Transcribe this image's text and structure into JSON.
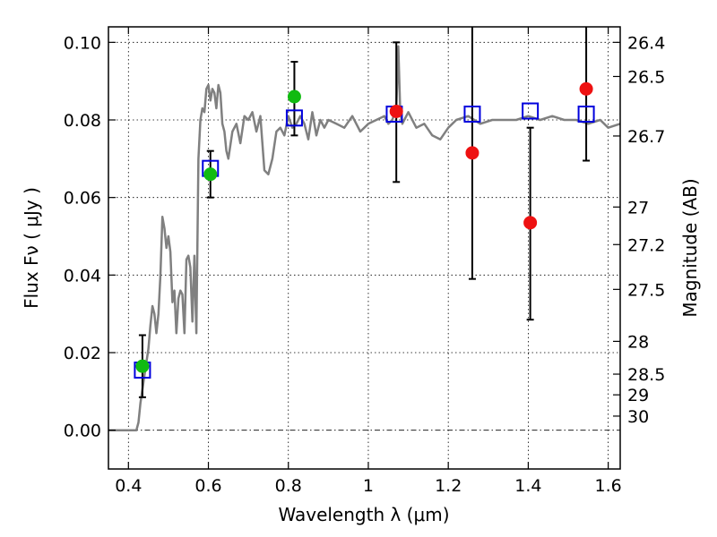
{
  "chart_data": {
    "type": "scatter",
    "xlabel": "Wavelength  λ (μm)",
    "ylabel": "Flux  Fν  ( μJy )",
    "y2label": "Magnitude (AB)",
    "xlim": [
      0.35,
      1.63
    ],
    "ylim": [
      -0.01,
      0.104
    ],
    "x_ticks": [
      0.4,
      0.6,
      0.8,
      1.0,
      1.2,
      1.4,
      1.6
    ],
    "x_tick_labels": [
      "0.4",
      "0.6",
      "0.8",
      "1",
      "1.2",
      "1.4",
      "1.6"
    ],
    "y_ticks": [
      0.0,
      0.02,
      0.04,
      0.06,
      0.08,
      0.1
    ],
    "y_tick_labels": [
      "0.00",
      "0.02",
      "0.04",
      "0.06",
      "0.08",
      "0.10"
    ],
    "y2_ticks": [
      {
        "label": "26.4",
        "mag": 26.4
      },
      {
        "label": "26.5",
        "mag": 26.5
      },
      {
        "label": "26.7",
        "mag": 26.7
      },
      {
        "label": "27",
        "mag": 27.0
      },
      {
        "label": "27.2",
        "mag": 27.2
      },
      {
        "label": "27.5",
        "mag": 27.5
      },
      {
        "label": "28",
        "mag": 28.0
      },
      {
        "label": "28.5",
        "mag": 28.5
      },
      {
        "label": "29",
        "mag": 29.0
      },
      {
        "label": "30",
        "mag": 30.0
      }
    ],
    "grid": true,
    "colors": {
      "model": "#808080",
      "green": "#11bb11",
      "red": "#ee1111",
      "blue": "#0000dd",
      "errorbar": "#000000"
    },
    "model_spectrum": {
      "x": [
        0.35,
        0.42,
        0.425,
        0.43,
        0.44,
        0.45,
        0.455,
        0.46,
        0.465,
        0.47,
        0.475,
        0.48,
        0.485,
        0.49,
        0.495,
        0.5,
        0.505,
        0.51,
        0.515,
        0.52,
        0.525,
        0.53,
        0.535,
        0.54,
        0.545,
        0.55,
        0.555,
        0.56,
        0.565,
        0.57,
        0.575,
        0.58,
        0.585,
        0.59,
        0.595,
        0.6,
        0.605,
        0.61,
        0.615,
        0.62,
        0.625,
        0.63,
        0.635,
        0.64,
        0.645,
        0.65,
        0.66,
        0.67,
        0.68,
        0.69,
        0.7,
        0.71,
        0.72,
        0.73,
        0.74,
        0.75,
        0.76,
        0.77,
        0.78,
        0.79,
        0.8,
        0.81,
        0.82,
        0.83,
        0.84,
        0.85,
        0.86,
        0.87,
        0.88,
        0.89,
        0.9,
        0.92,
        0.94,
        0.96,
        0.98,
        1.0,
        1.02,
        1.04,
        1.05,
        1.06,
        1.07,
        1.075,
        1.08,
        1.085,
        1.09,
        1.1,
        1.12,
        1.14,
        1.16,
        1.18,
        1.2,
        1.22,
        1.25,
        1.28,
        1.31,
        1.34,
        1.37,
        1.4,
        1.43,
        1.46,
        1.49,
        1.52,
        1.55,
        1.58,
        1.6,
        1.63
      ],
      "y": [
        0.0,
        0.0,
        0.002,
        0.007,
        0.014,
        0.021,
        0.027,
        0.032,
        0.03,
        0.025,
        0.03,
        0.04,
        0.055,
        0.052,
        0.047,
        0.05,
        0.046,
        0.033,
        0.036,
        0.025,
        0.034,
        0.036,
        0.035,
        0.025,
        0.044,
        0.045,
        0.042,
        0.028,
        0.045,
        0.025,
        0.07,
        0.08,
        0.083,
        0.082,
        0.088,
        0.089,
        0.085,
        0.088,
        0.087,
        0.083,
        0.089,
        0.087,
        0.079,
        0.077,
        0.072,
        0.07,
        0.077,
        0.079,
        0.074,
        0.081,
        0.08,
        0.082,
        0.077,
        0.081,
        0.067,
        0.066,
        0.07,
        0.077,
        0.078,
        0.076,
        0.081,
        0.078,
        0.079,
        0.081,
        0.079,
        0.075,
        0.082,
        0.076,
        0.08,
        0.078,
        0.08,
        0.079,
        0.078,
        0.081,
        0.077,
        0.079,
        0.08,
        0.081,
        0.079,
        0.08,
        0.083,
        0.099,
        0.082,
        0.079,
        0.08,
        0.082,
        0.078,
        0.079,
        0.076,
        0.075,
        0.078,
        0.08,
        0.081,
        0.079,
        0.08,
        0.08,
        0.08,
        0.081,
        0.08,
        0.081,
        0.08,
        0.08,
        0.079,
        0.08,
        0.078,
        0.079
      ]
    },
    "series": [
      {
        "marker": "square",
        "color_key": "blue",
        "x": [
          0.435,
          0.605,
          0.815,
          1.065,
          1.26,
          1.405,
          1.545
        ],
        "y": [
          0.0155,
          0.0675,
          0.0805,
          0.0815,
          0.0815,
          0.0823,
          0.0815
        ]
      },
      {
        "marker": "circle",
        "color_key": "green",
        "x": [
          0.435,
          0.605,
          0.815
        ],
        "y": [
          0.0165,
          0.066,
          0.086
        ]
      },
      {
        "marker": "circle",
        "color_key": "red",
        "x": [
          1.07,
          1.26,
          1.405,
          1.545
        ],
        "y": [
          0.0822,
          0.0715,
          0.0535,
          0.088
        ]
      }
    ],
    "error_bars": [
      {
        "x": 0.435,
        "low": 0.0085,
        "high": 0.0245
      },
      {
        "x": 0.605,
        "low": 0.06,
        "high": 0.072
      },
      {
        "x": 0.815,
        "low": 0.076,
        "high": 0.095
      },
      {
        "x": 1.07,
        "low": 0.064,
        "high": 0.1
      },
      {
        "x": 1.26,
        "low": 0.039,
        "high": 0.104
      },
      {
        "x": 1.405,
        "low": 0.0285,
        "high": 0.078
      },
      {
        "x": 1.545,
        "low": 0.0695,
        "high": 0.104
      }
    ]
  }
}
